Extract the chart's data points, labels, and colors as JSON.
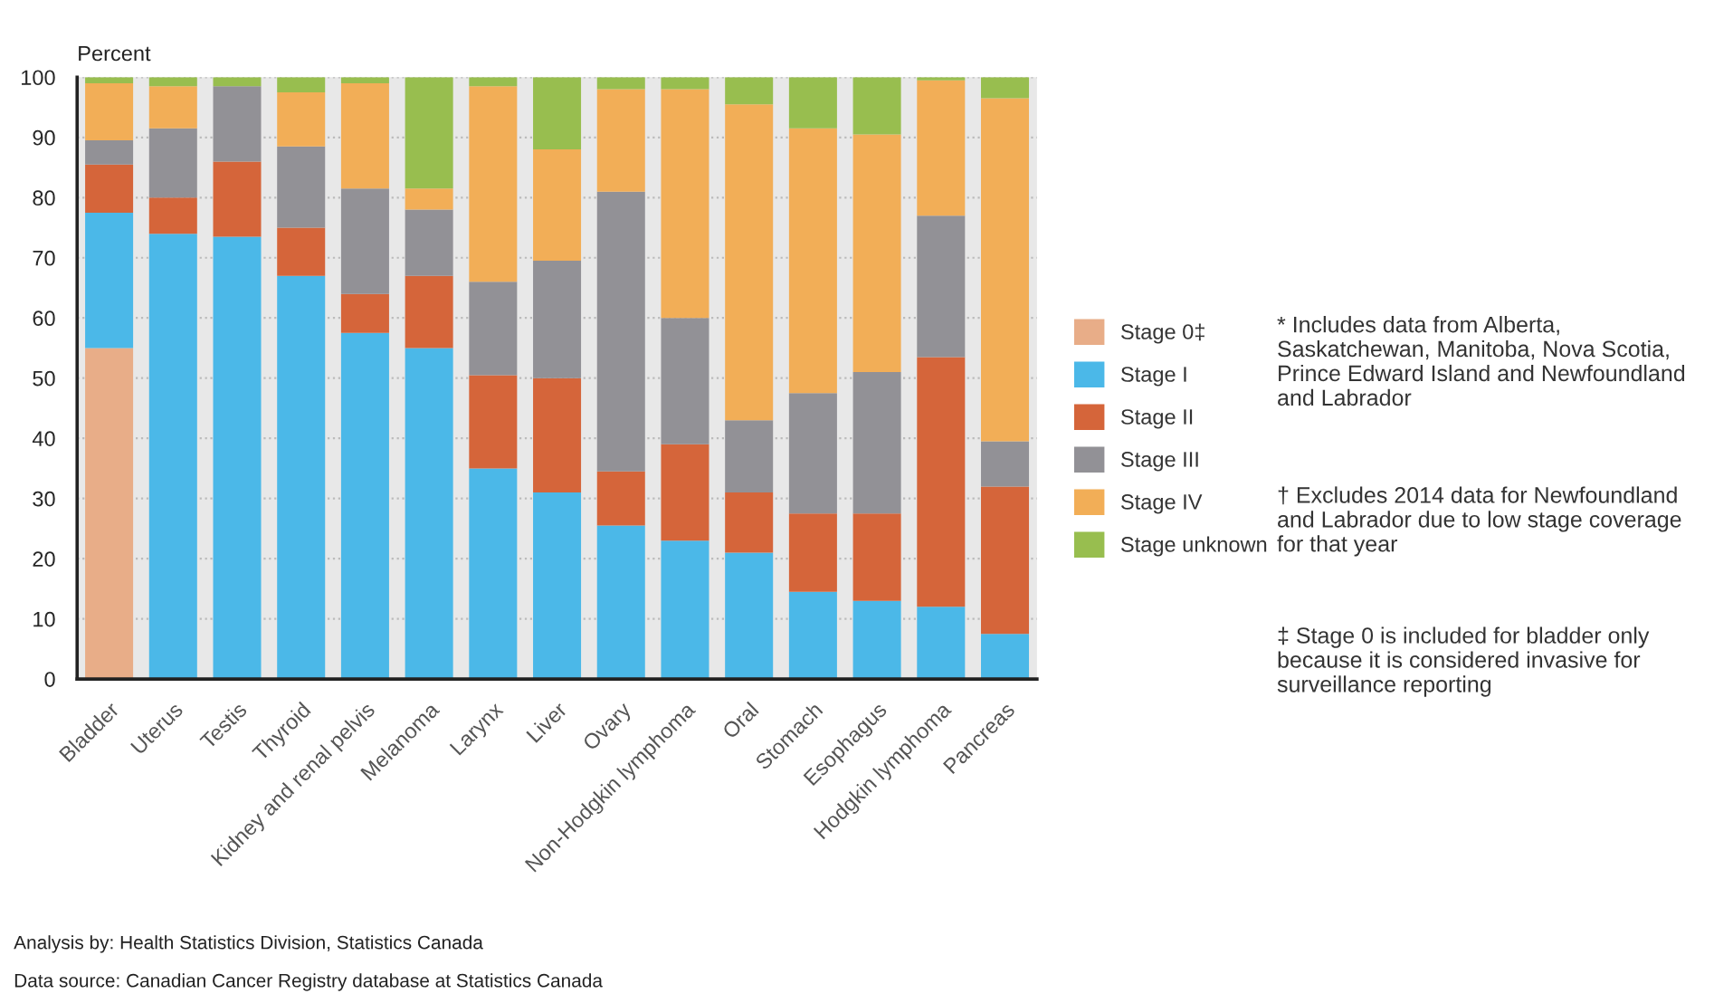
{
  "chart_data": {
    "type": "bar",
    "stacked": true,
    "ylabel": "Percent",
    "categories": [
      "Bladder",
      "Uterus",
      "Testis",
      "Thyroid",
      "Kidney and renal pelvis",
      "Melanoma",
      "Larynx",
      "Liver",
      "Ovary",
      "Non-Hodgkin lymphoma",
      "Oral",
      "Stomach",
      "Esophagus",
      "Hodgkin lymphoma",
      "Pancreas"
    ],
    "series": [
      {
        "name": "Stage 0‡",
        "color": "#e8ad88",
        "values": [
          55,
          null,
          null,
          null,
          null,
          null,
          null,
          null,
          null,
          null,
          null,
          null,
          null,
          null,
          null
        ]
      },
      {
        "name": "Stage I",
        "color": "#4bb8e8",
        "values": [
          22.5,
          74,
          73.5,
          67,
          57.5,
          55,
          35,
          31,
          25.5,
          23,
          21,
          14.5,
          13,
          12,
          7.5
        ]
      },
      {
        "name": "Stage II",
        "color": "#d5653a",
        "values": [
          8,
          6,
          12.5,
          8,
          6.5,
          12,
          15.5,
          19,
          9,
          16,
          10,
          13,
          14.5,
          41.5,
          24.5
        ]
      },
      {
        "name": "Stage III",
        "color": "#929196",
        "values": [
          4,
          11.5,
          12.5,
          13.5,
          17.5,
          11,
          15.5,
          19.5,
          46.5,
          21,
          12,
          20,
          23.5,
          23.5,
          7.5
        ]
      },
      {
        "name": "Stage IV",
        "color": "#f2ae57",
        "values": [
          9.5,
          7,
          null,
          9,
          17.5,
          3.5,
          32.5,
          18.5,
          17,
          38,
          52.5,
          44,
          39.5,
          22.5,
          57
        ]
      },
      {
        "name": "Stage unknown",
        "color": "#98be4f",
        "values": [
          1,
          1.5,
          1.5,
          2.5,
          1,
          18.5,
          1.5,
          12,
          2,
          2,
          4.5,
          8.5,
          9.5,
          0.5,
          3.5
        ]
      }
    ],
    "ylim": [
      0,
      100
    ],
    "yticks": [
      0,
      10,
      20,
      30,
      40,
      50,
      60,
      70,
      80,
      90,
      100
    ],
    "grid": "y",
    "legend": "right",
    "annotations": [
      "* Includes data from Alberta, Saskatchewan, Manitoba, Nova Scotia, Prince Edward Island and Newfoundland and Labrador",
      "† Excludes 2014 data for Newfoundland and Labrador due to low stage coverage for that year",
      "‡ Stage 0 is included for bladder only because it is considered invasive for surveillance reporting",
      "Analysis by: Health Statistics Division, Statistics Canada",
      "Data source: Canadian Cancer Registry database at Statistics Canada"
    ]
  }
}
